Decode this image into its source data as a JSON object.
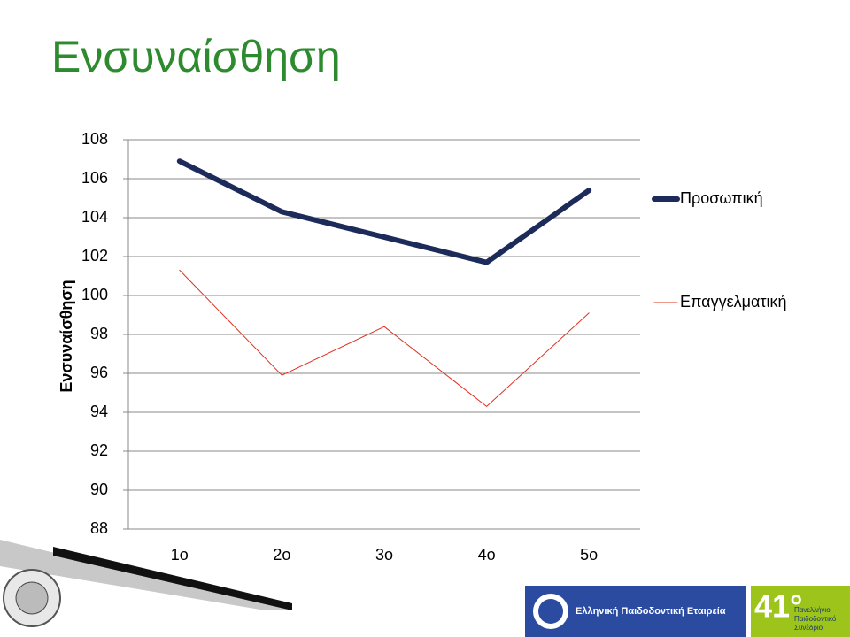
{
  "chart_data": {
    "type": "line",
    "title": "Ενσυναίσθηση",
    "y_label": "Ενσυναίσθηση",
    "categories": [
      "1ο",
      "2ο",
      "3ο",
      "4ο",
      "5ο"
    ],
    "series": [
      {
        "name": "Προσωπική",
        "color": "#1c2b5a",
        "values": [
          106.9,
          104.3,
          103.0,
          101.7,
          105.4
        ]
      },
      {
        "name": "Επαγγελματική",
        "color": "#e0301e",
        "values": [
          101.3,
          95.9,
          98.4,
          94.3,
          99.1
        ]
      }
    ],
    "ylim": [
      88,
      108
    ],
    "yticks": [
      88,
      90,
      92,
      94,
      96,
      98,
      100,
      102,
      104,
      106,
      108
    ],
    "grid": true,
    "legend": "right"
  },
  "logos": {
    "society": "Ελληνική Παιδοδοντική Εταιρεία",
    "congress_number": "41°",
    "congress_name": [
      "Πανελλήνιο",
      "Παιδοδοντικό",
      "Συνέδριο"
    ]
  }
}
